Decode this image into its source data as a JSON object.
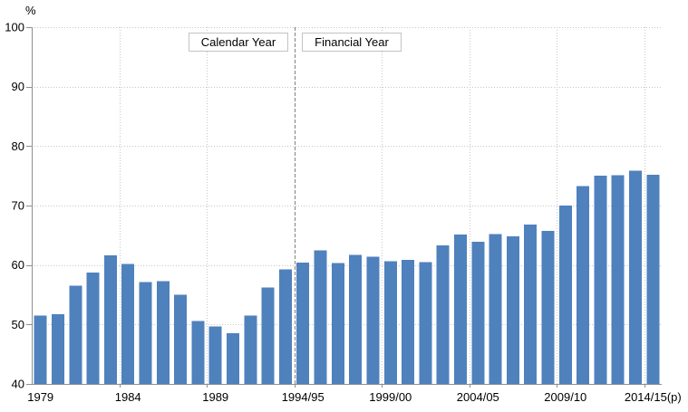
{
  "chart_data": {
    "type": "bar",
    "title": "",
    "xlabel": "",
    "ylabel": "%",
    "ylim": [
      40,
      100
    ],
    "y_ticks": [
      40,
      50,
      60,
      70,
      80,
      90,
      100
    ],
    "grid": true,
    "legend": "none",
    "bar_color": "#4f81bd",
    "axis_color": "#8e8e8e",
    "gridline_color": "#c6c6c6",
    "separator_color": "#808080",
    "annotations": [
      {
        "label": "Calendar Year"
      },
      {
        "label": "Financial Year"
      }
    ],
    "separator_index": 15,
    "x_tick_indices": [
      0,
      5,
      10,
      15,
      20,
      25,
      30,
      35
    ],
    "x_tick_labels": [
      "1979",
      "1984",
      "1989",
      "1994/95",
      "1999/00",
      "2004/05",
      "2009/10",
      "2014/15(p)"
    ],
    "categories": [
      "1979",
      "1980",
      "1981",
      "1982",
      "1983",
      "1984",
      "1985",
      "1986",
      "1987",
      "1988",
      "1989",
      "1990",
      "1991",
      "1992",
      "1993",
      "1994/95",
      "1995/96",
      "1996/97",
      "1997/98",
      "1998/99",
      "1999/00",
      "2000/01",
      "2001/02",
      "2002/03",
      "2003/04",
      "2004/05",
      "2005/06",
      "2006/07",
      "2007/08",
      "2008/09",
      "2009/10",
      "2010/11",
      "2011/12",
      "2012/13",
      "2013/14",
      "2014/15(p)"
    ],
    "values": [
      51.5,
      51.7,
      56.5,
      58.7,
      61.6,
      60.2,
      57.1,
      57.3,
      55.0,
      50.6,
      49.7,
      48.5,
      51.5,
      56.2,
      59.3,
      60.4,
      62.5,
      60.3,
      61.7,
      61.4,
      60.6,
      60.9,
      60.5,
      63.3,
      65.1,
      63.9,
      65.2,
      64.8,
      66.8,
      65.7,
      70.0,
      73.3,
      75.0,
      75.1,
      75.9,
      75.2
    ]
  }
}
